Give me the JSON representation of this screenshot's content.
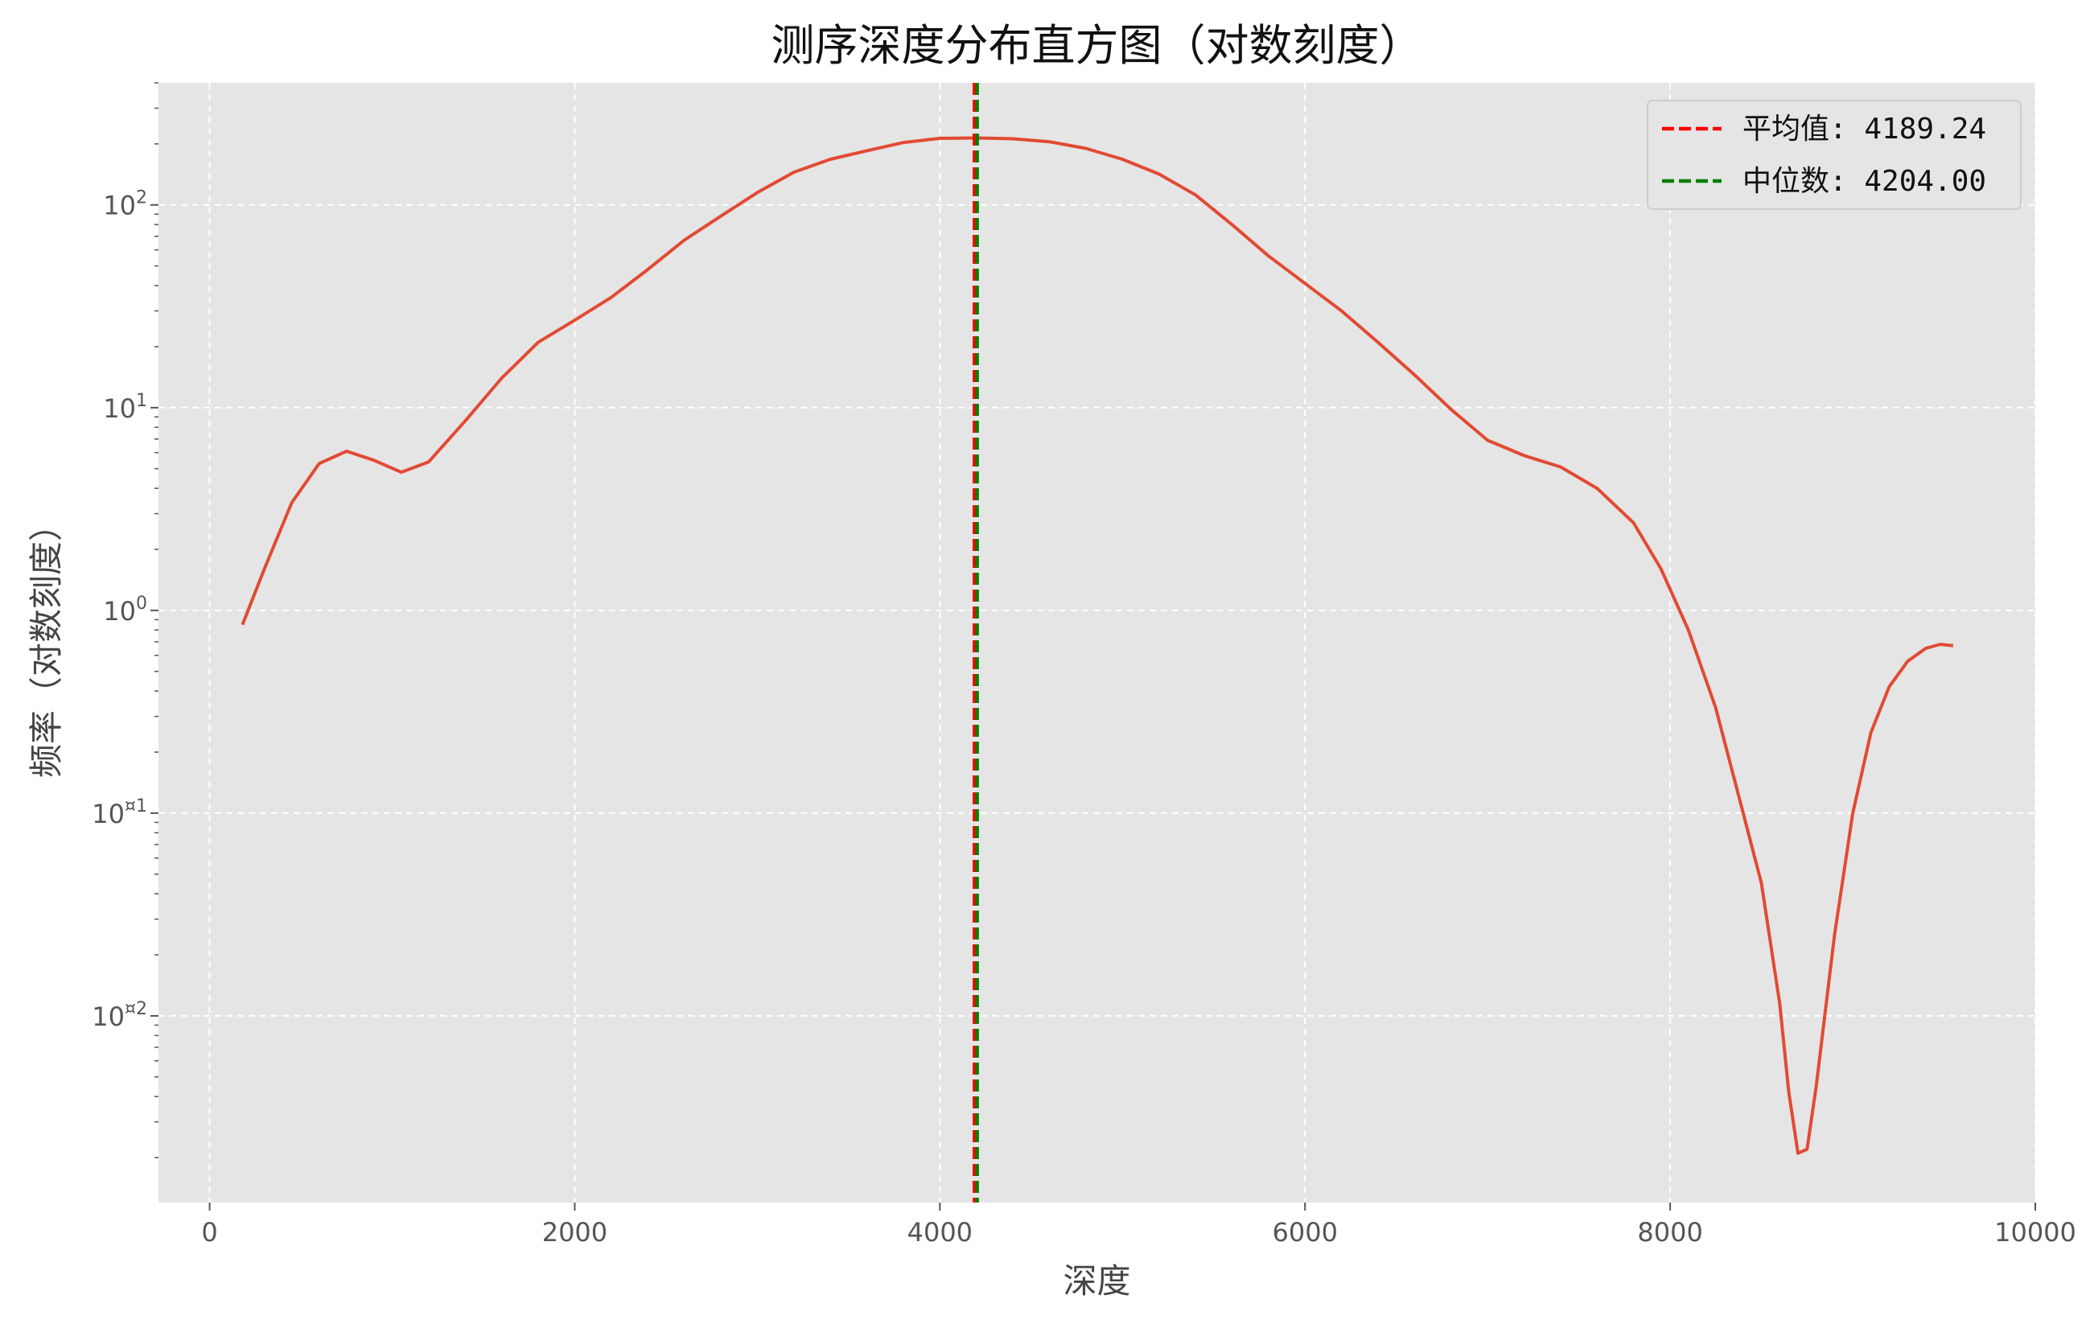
{
  "chart_data": {
    "type": "line",
    "title": "测序深度分布直方图（对数刻度）",
    "xlabel": "深度",
    "ylabel": "频率（对数刻度）",
    "xlim": [
      -280,
      10000
    ],
    "ylim": [
      0.0012,
      400
    ],
    "yscale": "log",
    "grid": true,
    "legend_position": "top-right",
    "xticks": [
      "0",
      "2000",
      "4000",
      "6000",
      "8000",
      "10000"
    ],
    "yticks": [
      {
        "value": 100,
        "base": "10",
        "exp": "2"
      },
      {
        "value": 10,
        "base": "10",
        "exp": "1"
      },
      {
        "value": 1,
        "base": "10",
        "exp": "0"
      },
      {
        "value": 0.1,
        "base": "10",
        "exp": "¤1"
      },
      {
        "value": 0.01,
        "base": "10",
        "exp": "¤2"
      }
    ],
    "series": [
      {
        "color": "#E24A33",
        "x": [
          180,
          300,
          450,
          600,
          750,
          900,
          1050,
          1200,
          1400,
          1600,
          1800,
          2000,
          2200,
          2400,
          2600,
          2800,
          3000,
          3200,
          3400,
          3600,
          3800,
          4000,
          4200,
          4400,
          4600,
          4800,
          5000,
          5200,
          5400,
          5600,
          5800,
          6000,
          6200,
          6400,
          6600,
          6800,
          7000,
          7200,
          7400,
          7600,
          7800,
          7950,
          8100,
          8250,
          8400,
          8500,
          8600,
          8650,
          8700,
          8750,
          8800,
          8900,
          9000,
          9100,
          9200,
          9300,
          9400,
          9480,
          9550
        ],
        "y": [
          0.85,
          1.6,
          3.4,
          5.3,
          6.1,
          5.5,
          4.8,
          5.4,
          8.6,
          14,
          21,
          27,
          35,
          48,
          67,
          88,
          115,
          145,
          168,
          185,
          203,
          213,
          214,
          212,
          205,
          190,
          168,
          142,
          112,
          80,
          56,
          41,
          30,
          21,
          14.5,
          9.8,
          6.9,
          5.8,
          5.1,
          4.0,
          2.7,
          1.6,
          0.8,
          0.33,
          0.1,
          0.045,
          0.0115,
          0.0042,
          0.0021,
          0.0022,
          0.0045,
          0.025,
          0.1,
          0.25,
          0.42,
          0.56,
          0.65,
          0.68,
          0.67
        ]
      }
    ],
    "reference_lines": [
      {
        "x": 4189.24,
        "color": "#FF0000",
        "label": "平均值: 4189.24"
      },
      {
        "x": 4204.0,
        "color": "#008000",
        "label": "中位数: 4204.00"
      }
    ]
  }
}
